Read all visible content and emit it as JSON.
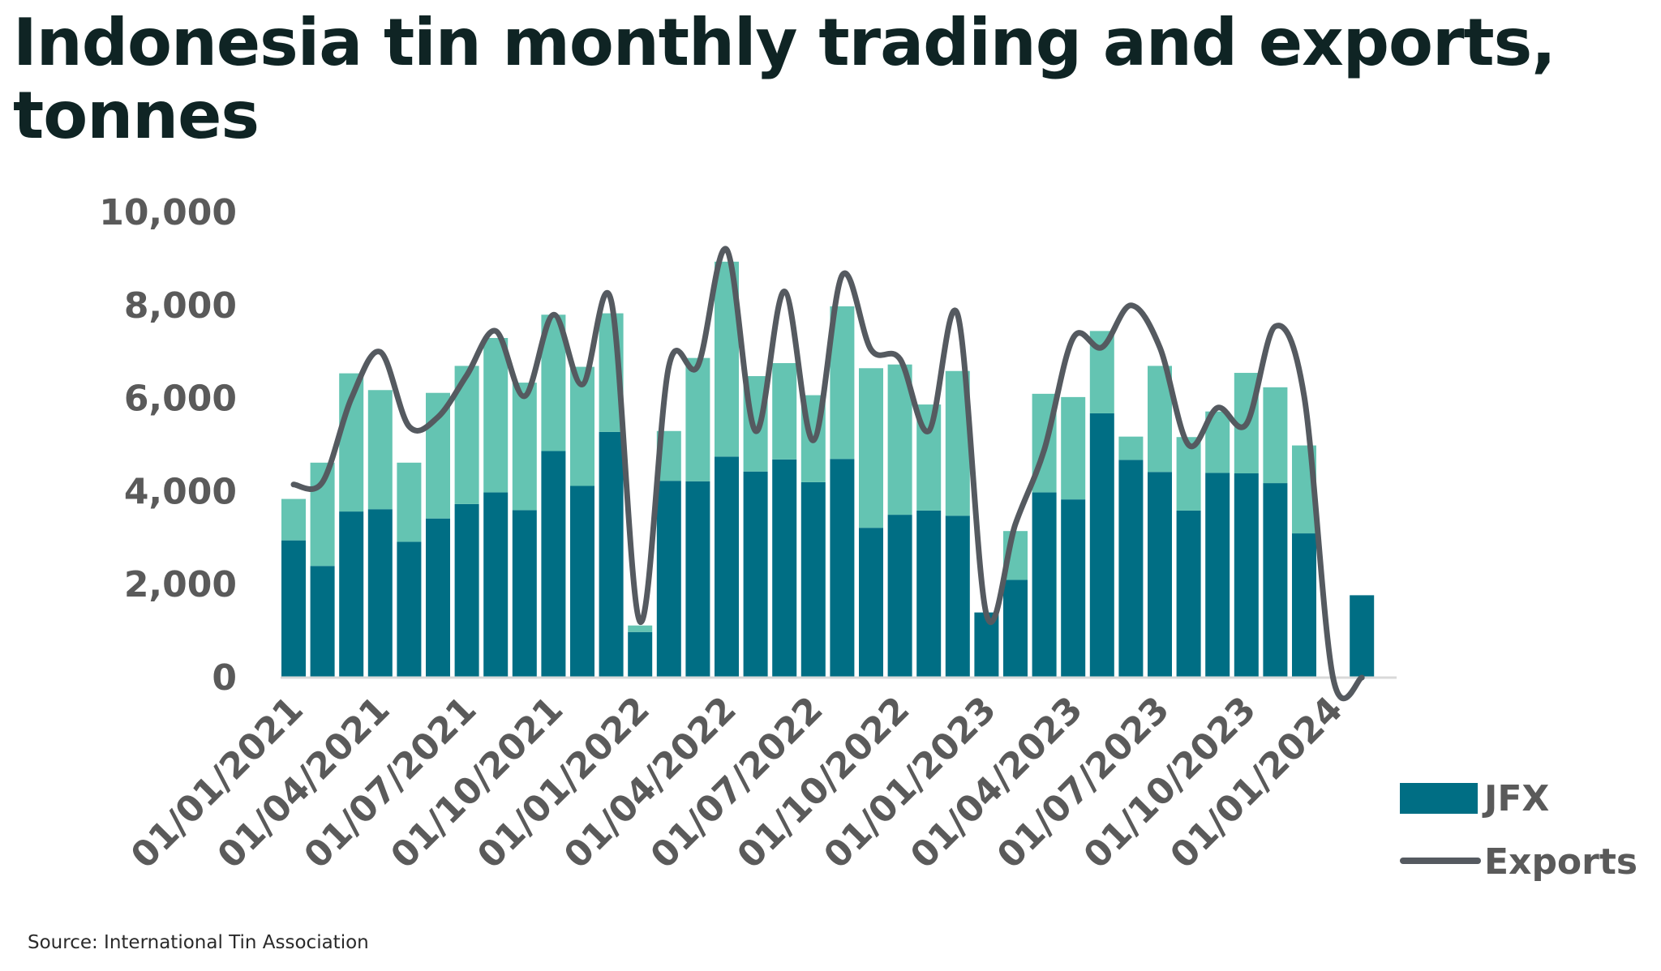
{
  "title": "Indonesia tin monthly trading and exports, tonnes",
  "source": "Source: International Tin Association",
  "colors": {
    "jfx": "#006e84",
    "trading_other": "#64c4b2",
    "exports": "#555a60",
    "axis": "#d9d9d9",
    "text": "#5a5a5a"
  },
  "chart_data": {
    "type": "bar",
    "stacked": true,
    "ylim": [
      0,
      10000
    ],
    "yticks": [
      "0",
      "2,000",
      "4,000",
      "6,000",
      "8,000",
      "10,000"
    ],
    "xtick_labels": [
      "01/01/2021",
      "01/04/2021",
      "01/07/2021",
      "01/10/2021",
      "01/01/2022",
      "01/04/2022",
      "01/07/2022",
      "01/10/2022",
      "01/01/2023",
      "01/04/2023",
      "01/07/2023",
      "01/10/2023",
      "01/01/2024"
    ],
    "categories": [
      "2021-01",
      "2021-02",
      "2021-03",
      "2021-04",
      "2021-05",
      "2021-06",
      "2021-07",
      "2021-08",
      "2021-09",
      "2021-10",
      "2021-11",
      "2021-12",
      "2022-01",
      "2022-02",
      "2022-03",
      "2022-04",
      "2022-05",
      "2022-06",
      "2022-07",
      "2022-08",
      "2022-09",
      "2022-10",
      "2022-11",
      "2022-12",
      "2023-01",
      "2023-02",
      "2023-03",
      "2023-04",
      "2023-05",
      "2023-06",
      "2023-07",
      "2023-08",
      "2023-09",
      "2023-10",
      "2023-11",
      "2023-12",
      "2024-01",
      "2024-02"
    ],
    "legend": {
      "position": "bottom-right",
      "entries": [
        "JFX",
        "Exports"
      ]
    },
    "series": [
      {
        "name": "JFX",
        "kind": "bar",
        "values": [
          2950,
          2400,
          3570,
          3620,
          2920,
          3420,
          3730,
          3980,
          3600,
          4870,
          4120,
          5280,
          980,
          4230,
          4220,
          4750,
          4430,
          4690,
          4200,
          4700,
          3220,
          3500,
          3590,
          3480,
          1400,
          2100,
          3980,
          3830,
          5680,
          4680,
          4420,
          3590,
          4400,
          4390,
          4180,
          3100,
          null,
          1770
        ]
      },
      {
        "kind": "bar",
        "values": [
          890,
          2220,
          2970,
          2560,
          1700,
          2700,
          2970,
          3320,
          2740,
          2930,
          2560,
          2550,
          140,
          1070,
          2650,
          4190,
          2050,
          2070,
          1870,
          3280,
          3430,
          3230,
          2280,
          3110,
          0,
          1050,
          2120,
          2200,
          1770,
          500,
          2280,
          1580,
          1320,
          2160,
          2060,
          1890,
          null,
          0
        ]
      },
      {
        "name": "Exports",
        "kind": "line",
        "values": [
          4150,
          4200,
          6000,
          7000,
          5400,
          5600,
          6500,
          7450,
          6050,
          7800,
          6300,
          8100,
          1200,
          6700,
          6700,
          9200,
          5300,
          8300,
          5100,
          8650,
          7050,
          6850,
          5300,
          7800,
          1350,
          3300,
          4900,
          7300,
          7100,
          8000,
          7100,
          5000,
          5800,
          5450,
          7550,
          6050,
          0,
          0
        ]
      }
    ]
  }
}
